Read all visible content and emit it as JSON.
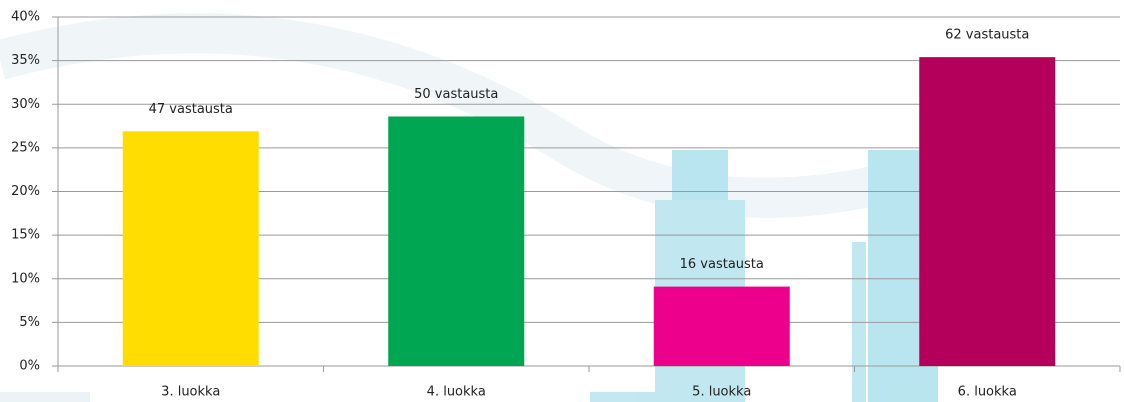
{
  "chart_data": {
    "type": "bar",
    "categories": [
      "3. luokka",
      "4. luokka",
      "5. luokka",
      "6. luokka"
    ],
    "values": [
      26.9,
      28.6,
      9.1,
      35.4
    ],
    "data_labels": [
      "47 vastausta",
      "50 vastausta",
      "16 vastausta",
      "62 vastausta"
    ],
    "colors": [
      "#ffdd00",
      "#00a651",
      "#ec008c",
      "#b5005b"
    ],
    "ylim": [
      0,
      40
    ],
    "yticks": [
      {
        "value": 0,
        "label": "0%"
      },
      {
        "value": 5,
        "label": "5%"
      },
      {
        "value": 10,
        "label": "10%"
      },
      {
        "value": 15,
        "label": "15%"
      },
      {
        "value": 20,
        "label": "20%"
      },
      {
        "value": 25,
        "label": "25%"
      },
      {
        "value": 30,
        "label": "30%"
      },
      {
        "value": 35,
        "label": "35%"
      },
      {
        "value": 40,
        "label": "40%"
      }
    ],
    "grid": true
  }
}
